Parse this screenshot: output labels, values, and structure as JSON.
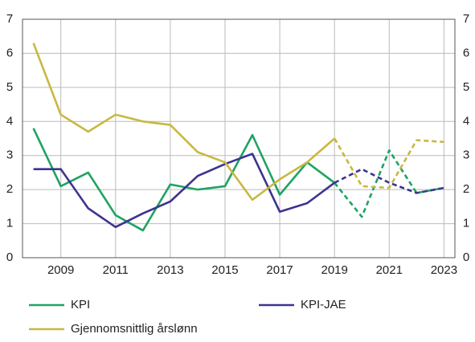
{
  "chart_data": {
    "type": "line",
    "x": [
      2008,
      2009,
      2010,
      2011,
      2012,
      2013,
      2014,
      2015,
      2016,
      2017,
      2018,
      2019,
      2020,
      2021,
      2022,
      2023
    ],
    "xlim": [
      2007.6,
      2023.4
    ],
    "xticks": [
      2009,
      2011,
      2013,
      2015,
      2017,
      2019,
      2021,
      2023
    ],
    "ylim": [
      0,
      7
    ],
    "yticks": [
      0,
      1,
      2,
      3,
      4,
      5,
      6,
      7
    ],
    "grid": true,
    "dashed_from": 2019,
    "legend": "bottom",
    "series": [
      {
        "name": "KPI",
        "color": "#1fa363",
        "values": [
          3.8,
          2.1,
          2.5,
          1.25,
          0.8,
          2.15,
          2.0,
          2.1,
          3.6,
          1.85,
          2.8,
          2.2,
          1.2,
          3.15,
          1.9,
          2.05
        ]
      },
      {
        "name": "KPI-JAE",
        "color": "#3c3490",
        "values": [
          2.6,
          2.6,
          1.45,
          0.9,
          1.3,
          1.65,
          2.4,
          2.75,
          3.05,
          1.35,
          1.6,
          2.2,
          2.6,
          2.2,
          1.9,
          2.05
        ]
      },
      {
        "name": "Gjennomsnittlig årslønn",
        "color": "#c8b840",
        "values": [
          6.3,
          4.2,
          3.7,
          4.2,
          4.0,
          3.9,
          3.1,
          2.8,
          1.7,
          2.3,
          2.8,
          3.5,
          2.1,
          2.05,
          3.45,
          3.4
        ]
      }
    ]
  }
}
